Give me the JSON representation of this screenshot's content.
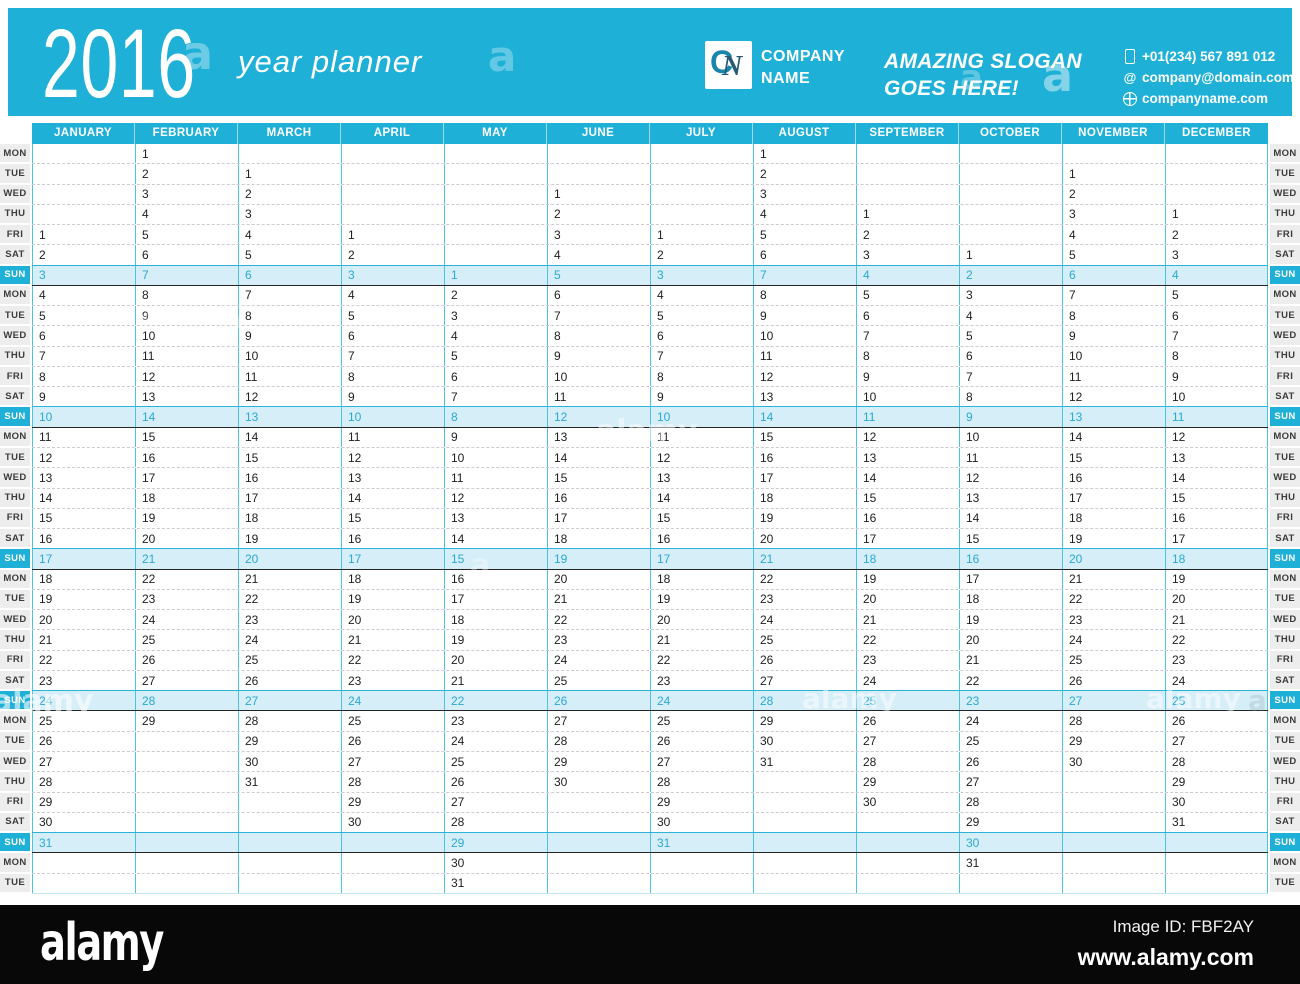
{
  "header": {
    "year": "2016",
    "subtitle": "year planner"
  },
  "company": {
    "logo_letter_c": "C",
    "logo_letter_n": "N",
    "name_line1": "COMPANY",
    "name_line2": "NAME",
    "slogan_line1": "AMAZING SLOGAN",
    "slogan_line2": "GOES HERE!",
    "phone": "+01(234) 567 891 012",
    "email": "company@domain.com",
    "website": "companyname.com"
  },
  "colors": {
    "accent": "#1FB0D8",
    "sun_row_bg": "#D5EEF8",
    "sun_text": "#2AA9D4",
    "grid_line": "#4FC1E1",
    "label_bg": "#EDEDED",
    "footer_bg": "#080808"
  },
  "calendar": {
    "months": [
      "JANUARY",
      "FEBRUARY",
      "MARCH",
      "APRIL",
      "MAY",
      "JUNE",
      "JULY",
      "AUGUST",
      "SEPTEMBER",
      "OCTOBER",
      "NOVEMBER",
      "DECEMBER"
    ],
    "rows": [
      {
        "label": "MON",
        "sun": false,
        "cells": [
          "",
          "1",
          "",
          "",
          "",
          "",
          "",
          "1",
          "",
          "",
          "",
          ""
        ]
      },
      {
        "label": "TUE",
        "sun": false,
        "cells": [
          "",
          "2",
          "1",
          "",
          "",
          "",
          "",
          "2",
          "",
          "",
          "1",
          ""
        ]
      },
      {
        "label": "WED",
        "sun": false,
        "cells": [
          "",
          "3",
          "2",
          "",
          "",
          "1",
          "",
          "3",
          "",
          "",
          "2",
          ""
        ]
      },
      {
        "label": "THU",
        "sun": false,
        "cells": [
          "",
          "4",
          "3",
          "",
          "",
          "2",
          "",
          "4",
          "1",
          "",
          "3",
          "1"
        ]
      },
      {
        "label": "FRI",
        "sun": false,
        "cells": [
          "1",
          "5",
          "4",
          "1",
          "",
          "3",
          "1",
          "5",
          "2",
          "",
          "4",
          "2"
        ]
      },
      {
        "label": "SAT",
        "sun": false,
        "cells": [
          "2",
          "6",
          "5",
          "2",
          "",
          "4",
          "2",
          "6",
          "3",
          "1",
          "5",
          "3"
        ]
      },
      {
        "label": "SUN",
        "sun": true,
        "cells": [
          "3",
          "7",
          "6",
          "3",
          "1",
          "5",
          "3",
          "7",
          "4",
          "2",
          "6",
          "4"
        ]
      },
      {
        "label": "MON",
        "sun": false,
        "cells": [
          "4",
          "8",
          "7",
          "4",
          "2",
          "6",
          "4",
          "8",
          "5",
          "3",
          "7",
          "5"
        ]
      },
      {
        "label": "TUE",
        "sun": false,
        "cells": [
          "5",
          "9",
          "8",
          "5",
          "3",
          "7",
          "5",
          "9",
          "6",
          "4",
          "8",
          "6"
        ]
      },
      {
        "label": "WED",
        "sun": false,
        "cells": [
          "6",
          "10",
          "9",
          "6",
          "4",
          "8",
          "6",
          "10",
          "7",
          "5",
          "9",
          "7"
        ]
      },
      {
        "label": "THU",
        "sun": false,
        "cells": [
          "7",
          "11",
          "10",
          "7",
          "5",
          "9",
          "7",
          "11",
          "8",
          "6",
          "10",
          "8"
        ]
      },
      {
        "label": "FRI",
        "sun": false,
        "cells": [
          "8",
          "12",
          "11",
          "8",
          "6",
          "10",
          "8",
          "12",
          "9",
          "7",
          "11",
          "9"
        ]
      },
      {
        "label": "SAT",
        "sun": false,
        "cells": [
          "9",
          "13",
          "12",
          "9",
          "7",
          "11",
          "9",
          "13",
          "10",
          "8",
          "12",
          "10"
        ]
      },
      {
        "label": "SUN",
        "sun": true,
        "cells": [
          "10",
          "14",
          "13",
          "10",
          "8",
          "12",
          "10",
          "14",
          "11",
          "9",
          "13",
          "11"
        ]
      },
      {
        "label": "MON",
        "sun": false,
        "cells": [
          "11",
          "15",
          "14",
          "11",
          "9",
          "13",
          "11",
          "15",
          "12",
          "10",
          "14",
          "12"
        ]
      },
      {
        "label": "TUE",
        "sun": false,
        "cells": [
          "12",
          "16",
          "15",
          "12",
          "10",
          "14",
          "12",
          "16",
          "13",
          "11",
          "15",
          "13"
        ]
      },
      {
        "label": "WED",
        "sun": false,
        "cells": [
          "13",
          "17",
          "16",
          "13",
          "11",
          "15",
          "13",
          "17",
          "14",
          "12",
          "16",
          "14"
        ]
      },
      {
        "label": "THU",
        "sun": false,
        "cells": [
          "14",
          "18",
          "17",
          "14",
          "12",
          "16",
          "14",
          "18",
          "15",
          "13",
          "17",
          "15"
        ]
      },
      {
        "label": "FRI",
        "sun": false,
        "cells": [
          "15",
          "19",
          "18",
          "15",
          "13",
          "17",
          "15",
          "19",
          "16",
          "14",
          "18",
          "16"
        ]
      },
      {
        "label": "SAT",
        "sun": false,
        "cells": [
          "16",
          "20",
          "19",
          "16",
          "14",
          "18",
          "16",
          "20",
          "17",
          "15",
          "19",
          "17"
        ]
      },
      {
        "label": "SUN",
        "sun": true,
        "cells": [
          "17",
          "21",
          "20",
          "17",
          "15",
          "19",
          "17",
          "21",
          "18",
          "16",
          "20",
          "18"
        ]
      },
      {
        "label": "MON",
        "sun": false,
        "cells": [
          "18",
          "22",
          "21",
          "18",
          "16",
          "20",
          "18",
          "22",
          "19",
          "17",
          "21",
          "19"
        ]
      },
      {
        "label": "TUE",
        "sun": false,
        "cells": [
          "19",
          "23",
          "22",
          "19",
          "17",
          "21",
          "19",
          "23",
          "20",
          "18",
          "22",
          "20"
        ]
      },
      {
        "label": "WED",
        "sun": false,
        "cells": [
          "20",
          "24",
          "23",
          "20",
          "18",
          "22",
          "20",
          "24",
          "21",
          "19",
          "23",
          "21"
        ]
      },
      {
        "label": "THU",
        "sun": false,
        "cells": [
          "21",
          "25",
          "24",
          "21",
          "19",
          "23",
          "21",
          "25",
          "22",
          "20",
          "24",
          "22"
        ]
      },
      {
        "label": "FRI",
        "sun": false,
        "cells": [
          "22",
          "26",
          "25",
          "22",
          "20",
          "24",
          "22",
          "26",
          "23",
          "21",
          "25",
          "23"
        ]
      },
      {
        "label": "SAT",
        "sun": false,
        "cells": [
          "23",
          "27",
          "26",
          "23",
          "21",
          "25",
          "23",
          "27",
          "24",
          "22",
          "26",
          "24"
        ]
      },
      {
        "label": "SUN",
        "sun": true,
        "cells": [
          "24",
          "28",
          "27",
          "24",
          "22",
          "26",
          "24",
          "28",
          "25",
          "23",
          "27",
          "25"
        ]
      },
      {
        "label": "MON",
        "sun": false,
        "cells": [
          "25",
          "29",
          "28",
          "25",
          "23",
          "27",
          "25",
          "29",
          "26",
          "24",
          "28",
          "26"
        ]
      },
      {
        "label": "TUE",
        "sun": false,
        "cells": [
          "26",
          "",
          "29",
          "26",
          "24",
          "28",
          "26",
          "30",
          "27",
          "25",
          "29",
          "27"
        ]
      },
      {
        "label": "WED",
        "sun": false,
        "cells": [
          "27",
          "",
          "30",
          "27",
          "25",
          "29",
          "27",
          "31",
          "28",
          "26",
          "30",
          "28"
        ]
      },
      {
        "label": "THU",
        "sun": false,
        "cells": [
          "28",
          "",
          "31",
          "28",
          "26",
          "30",
          "28",
          "",
          "29",
          "27",
          "",
          "29"
        ]
      },
      {
        "label": "FRI",
        "sun": false,
        "cells": [
          "29",
          "",
          "",
          "29",
          "27",
          "",
          "29",
          "",
          "30",
          "28",
          "",
          "30"
        ]
      },
      {
        "label": "SAT",
        "sun": false,
        "cells": [
          "30",
          "",
          "",
          "30",
          "28",
          "",
          "30",
          "",
          "",
          "29",
          "",
          "31"
        ]
      },
      {
        "label": "SUN",
        "sun": true,
        "cells": [
          "31",
          "",
          "",
          "",
          "29",
          "",
          "31",
          "",
          "",
          "30",
          "",
          ""
        ]
      },
      {
        "label": "MON",
        "sun": false,
        "cells": [
          "",
          "",
          "",
          "",
          "30",
          "",
          "",
          "",
          "",
          "31",
          "",
          ""
        ]
      },
      {
        "label": "TUE",
        "sun": false,
        "cells": [
          "",
          "",
          "",
          "",
          "31",
          "",
          "",
          "",
          "",
          "",
          "",
          ""
        ]
      }
    ]
  },
  "footer": {
    "logo": "alamy",
    "image_id": "Image ID: FBF2AY",
    "url": "www.alamy.com"
  },
  "watermark": {
    "tile_text": "alamy",
    "letter_text": "a"
  }
}
